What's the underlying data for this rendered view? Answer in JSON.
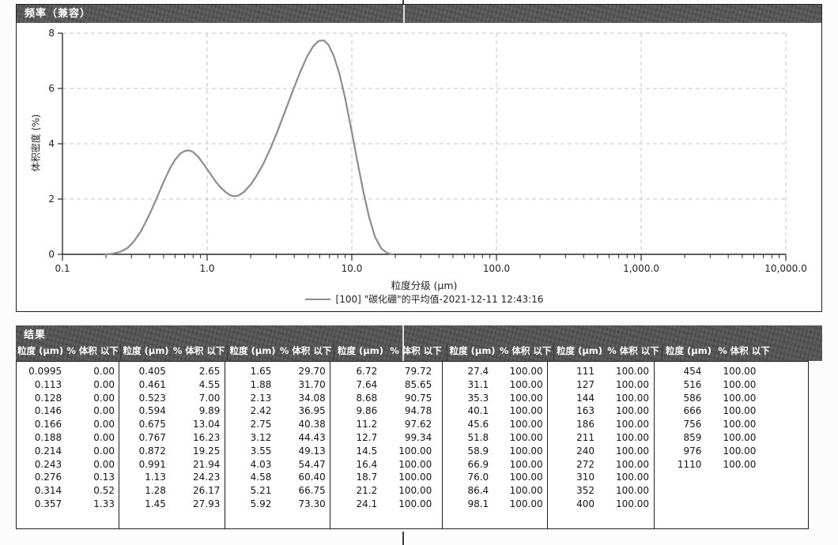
{
  "chart_panel": {
    "title": "频率（兼容）"
  },
  "chart_data": {
    "type": "line",
    "panel_title": "频率（兼容）",
    "xlabel": "粒度分级 (µm)",
    "ylabel": "体积密度 (%)",
    "x_scale": "log",
    "xlim": [
      0.1,
      10000
    ],
    "ylim": [
      0,
      8
    ],
    "x_tick_values": [
      0.1,
      1,
      10,
      100,
      1000,
      10000
    ],
    "x_tick_labels": [
      "0.1",
      "1.0",
      "10.0",
      "100.0",
      "1,000.0",
      "10,000.0"
    ],
    "y_ticks": [
      0,
      2,
      4,
      6,
      8
    ],
    "grid": true,
    "legend_position": "bottom-center",
    "series": [
      {
        "name": "[100] \"碳化硼\"的平均值-2021-12-11 12:43:16",
        "color": "#8c8c8c",
        "points": [
          [
            0.2,
            0.0
          ],
          [
            0.22,
            0.02
          ],
          [
            0.25,
            0.09
          ],
          [
            0.28,
            0.22
          ],
          [
            0.31,
            0.45
          ],
          [
            0.35,
            0.85
          ],
          [
            0.4,
            1.45
          ],
          [
            0.45,
            2.05
          ],
          [
            0.5,
            2.62
          ],
          [
            0.55,
            3.08
          ],
          [
            0.6,
            3.42
          ],
          [
            0.65,
            3.64
          ],
          [
            0.7,
            3.74
          ],
          [
            0.75,
            3.76
          ],
          [
            0.8,
            3.7
          ],
          [
            0.87,
            3.52
          ],
          [
            0.95,
            3.25
          ],
          [
            1.05,
            2.92
          ],
          [
            1.15,
            2.62
          ],
          [
            1.25,
            2.4
          ],
          [
            1.35,
            2.24
          ],
          [
            1.45,
            2.13
          ],
          [
            1.55,
            2.1
          ],
          [
            1.65,
            2.13
          ],
          [
            1.8,
            2.26
          ],
          [
            2.0,
            2.52
          ],
          [
            2.2,
            2.85
          ],
          [
            2.45,
            3.28
          ],
          [
            2.75,
            3.85
          ],
          [
            3.1,
            4.52
          ],
          [
            3.5,
            5.25
          ],
          [
            3.95,
            5.98
          ],
          [
            4.4,
            6.6
          ],
          [
            4.9,
            7.15
          ],
          [
            5.4,
            7.52
          ],
          [
            5.9,
            7.72
          ],
          [
            6.4,
            7.74
          ],
          [
            6.9,
            7.58
          ],
          [
            7.5,
            7.18
          ],
          [
            8.2,
            6.55
          ],
          [
            9.0,
            5.65
          ],
          [
            9.9,
            4.55
          ],
          [
            10.9,
            3.4
          ],
          [
            12.0,
            2.28
          ],
          [
            13.2,
            1.32
          ],
          [
            14.5,
            0.62
          ],
          [
            16.0,
            0.21
          ],
          [
            17.5,
            0.05
          ],
          [
            19.0,
            0.0
          ]
        ]
      }
    ]
  },
  "results_panel": {
    "title": "结果",
    "col_headers": [
      "粒度 (µm)",
      "% 体积 以下"
    ],
    "groups": [
      {
        "rows": [
          [
            "0.0995",
            "0.00"
          ],
          [
            "0.113",
            "0.00"
          ],
          [
            "0.128",
            "0.00"
          ],
          [
            "0.146",
            "0.00"
          ],
          [
            "0.166",
            "0.00"
          ],
          [
            "0.188",
            "0.00"
          ],
          [
            "0.214",
            "0.00"
          ],
          [
            "0.243",
            "0.00"
          ],
          [
            "0.276",
            "0.13"
          ],
          [
            "0.314",
            "0.52"
          ],
          [
            "0.357",
            "1.33"
          ]
        ]
      },
      {
        "rows": [
          [
            "0.405",
            "2.65"
          ],
          [
            "0.461",
            "4.55"
          ],
          [
            "0.523",
            "7.00"
          ],
          [
            "0.594",
            "9.89"
          ],
          [
            "0.675",
            "13.04"
          ],
          [
            "0.767",
            "16.23"
          ],
          [
            "0.872",
            "19.25"
          ],
          [
            "0.991",
            "21.94"
          ],
          [
            "1.13",
            "24.23"
          ],
          [
            "1.28",
            "26.17"
          ],
          [
            "1.45",
            "27.93"
          ]
        ]
      },
      {
        "rows": [
          [
            "1.65",
            "29.70"
          ],
          [
            "1.88",
            "31.70"
          ],
          [
            "2.13",
            "34.08"
          ],
          [
            "2.42",
            "36.95"
          ],
          [
            "2.75",
            "40.38"
          ],
          [
            "3.12",
            "44.43"
          ],
          [
            "3.55",
            "49.13"
          ],
          [
            "4.03",
            "54.47"
          ],
          [
            "4.58",
            "60.40"
          ],
          [
            "5.21",
            "66.75"
          ],
          [
            "5.92",
            "73.30"
          ]
        ]
      },
      {
        "rows": [
          [
            "6.72",
            "79.72"
          ],
          [
            "7.64",
            "85.65"
          ],
          [
            "8.68",
            "90.75"
          ],
          [
            "9.86",
            "94.78"
          ],
          [
            "11.2",
            "97.62"
          ],
          [
            "12.7",
            "99.34"
          ],
          [
            "14.5",
            "100.00"
          ],
          [
            "16.4",
            "100.00"
          ],
          [
            "18.7",
            "100.00"
          ],
          [
            "21.2",
            "100.00"
          ],
          [
            "24.1",
            "100.00"
          ]
        ]
      },
      {
        "rows": [
          [
            "27.4",
            "100.00"
          ],
          [
            "31.1",
            "100.00"
          ],
          [
            "35.3",
            "100.00"
          ],
          [
            "40.1",
            "100.00"
          ],
          [
            "45.6",
            "100.00"
          ],
          [
            "51.8",
            "100.00"
          ],
          [
            "58.9",
            "100.00"
          ],
          [
            "66.9",
            "100.00"
          ],
          [
            "76.0",
            "100.00"
          ],
          [
            "86.4",
            "100.00"
          ],
          [
            "98.1",
            "100.00"
          ]
        ]
      },
      {
        "rows": [
          [
            "111",
            "100.00"
          ],
          [
            "127",
            "100.00"
          ],
          [
            "144",
            "100.00"
          ],
          [
            "163",
            "100.00"
          ],
          [
            "186",
            "100.00"
          ],
          [
            "211",
            "100.00"
          ],
          [
            "240",
            "100.00"
          ],
          [
            "272",
            "100.00"
          ],
          [
            "310",
            "100.00"
          ],
          [
            "352",
            "100.00"
          ],
          [
            "400",
            "100.00"
          ]
        ]
      },
      {
        "rows": [
          [
            "454",
            "100.00"
          ],
          [
            "516",
            "100.00"
          ],
          [
            "586",
            "100.00"
          ],
          [
            "666",
            "100.00"
          ],
          [
            "756",
            "100.00"
          ],
          [
            "859",
            "100.00"
          ],
          [
            "976",
            "100.00"
          ],
          [
            "1110",
            "100.00"
          ]
        ]
      }
    ]
  },
  "colors": {
    "header_bg": "#565656",
    "header_text": "#ffffff",
    "curve": "#8c8c8c",
    "grid": "#c4c4c4",
    "axis": "#2a2a2a",
    "border": "#1f1f1f"
  }
}
